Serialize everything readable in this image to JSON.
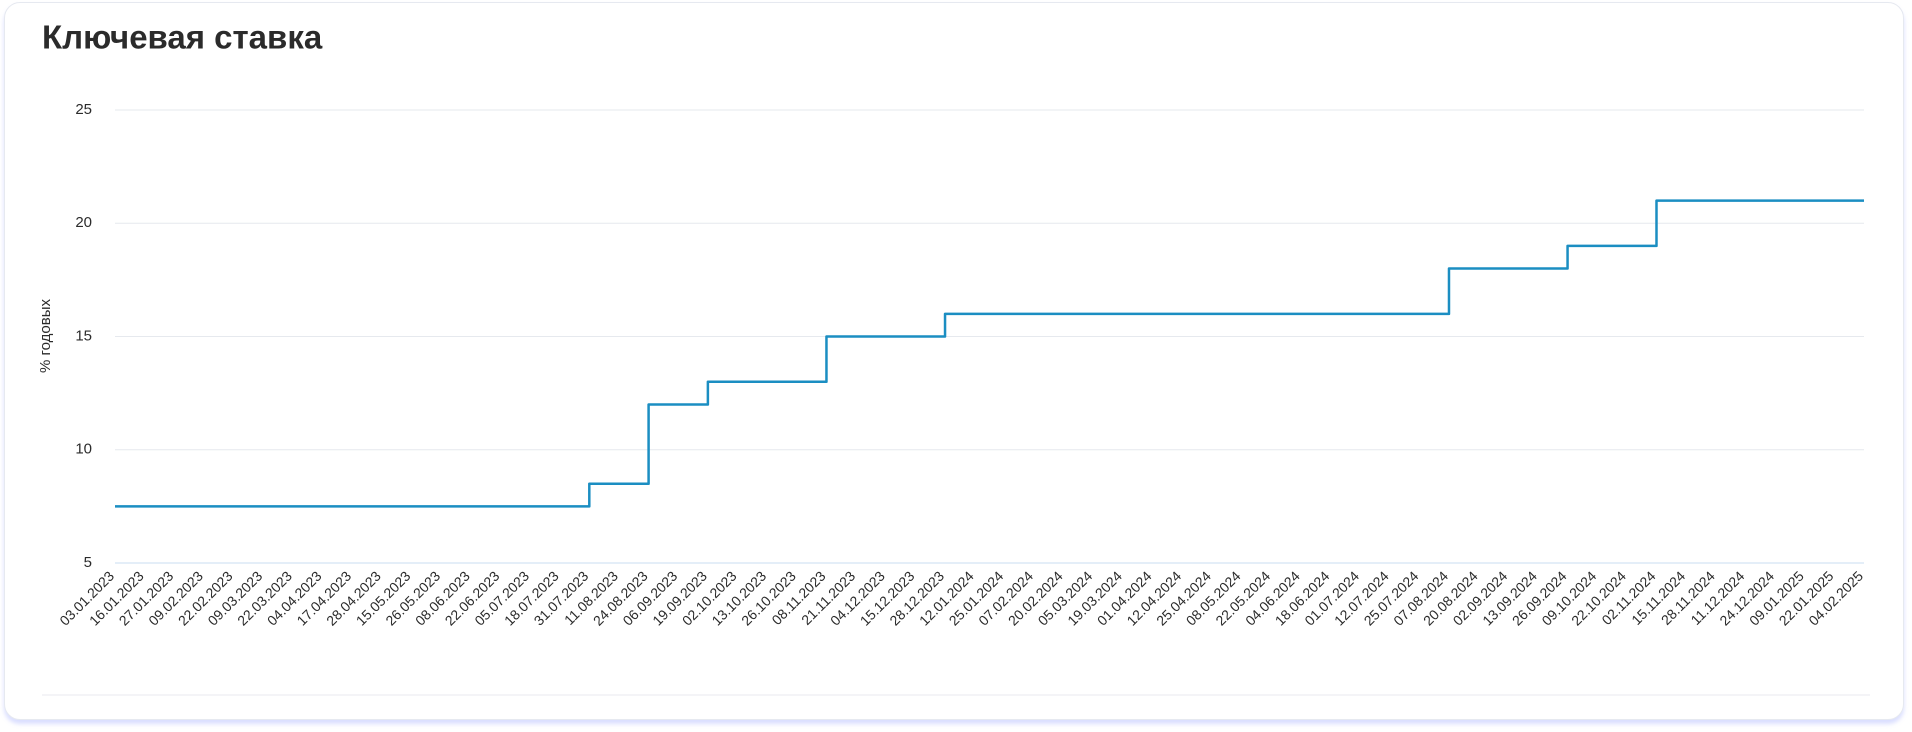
{
  "chart_data": {
    "type": "line",
    "title": "Ключевая ставка",
    "y_label": "% годовых",
    "categories": [
      "03.01.2023",
      "16.01.2023",
      "27.01.2023",
      "09.02.2023",
      "22.02.2023",
      "09.03.2023",
      "22.03.2023",
      "04.04.2023",
      "17.04.2023",
      "28.04.2023",
      "15.05.2023",
      "26.05.2023",
      "08.06.2023",
      "22.06.2023",
      "05.07.2023",
      "18.07.2023",
      "31.07.2023",
      "11.08.2023",
      "24.08.2023",
      "06.09.2023",
      "19.09.2023",
      "02.10.2023",
      "13.10.2023",
      "26.10.2023",
      "08.11.2023",
      "21.11.2023",
      "04.12.2023",
      "15.12.2023",
      "28.12.2023",
      "12.01.2024",
      "25.01.2024",
      "07.02.2024",
      "20.02.2024",
      "05.03.2024",
      "19.03.2024",
      "01.04.2024",
      "12.04.2024",
      "25.04.2024",
      "08.05.2024",
      "22.05.2024",
      "04.06.2024",
      "18.06.2024",
      "01.07.2024",
      "12.07.2024",
      "25.07.2024",
      "07.08.2024",
      "20.08.2024",
      "02.09.2024",
      "13.09.2024",
      "26.09.2024",
      "09.10.2024",
      "22.10.2024",
      "02.11.2024",
      "15.11.2024",
      "28.11.2024",
      "11.12.2024",
      "24.12.2024",
      "09.01.2025",
      "22.01.2025",
      "04.02.2025"
    ],
    "values": [
      7.5,
      7.5,
      7.5,
      7.5,
      7.5,
      7.5,
      7.5,
      7.5,
      7.5,
      7.5,
      7.5,
      7.5,
      7.5,
      7.5,
      7.5,
      7.5,
      8.5,
      8.5,
      12,
      12,
      13,
      13,
      13,
      13,
      15,
      15,
      15,
      15,
      16,
      16,
      16,
      16,
      16,
      16,
      16,
      16,
      16,
      16,
      16,
      16,
      16,
      16,
      16,
      16,
      16,
      18,
      18,
      18,
      18,
      19,
      19,
      19,
      21,
      21,
      21,
      21,
      21,
      21,
      21,
      21
    ],
    "color": "#1b8ec2",
    "step": true,
    "ylim": [
      5,
      25
    ],
    "yticks": [
      5,
      10,
      15,
      20,
      25
    ],
    "grid": true
  }
}
